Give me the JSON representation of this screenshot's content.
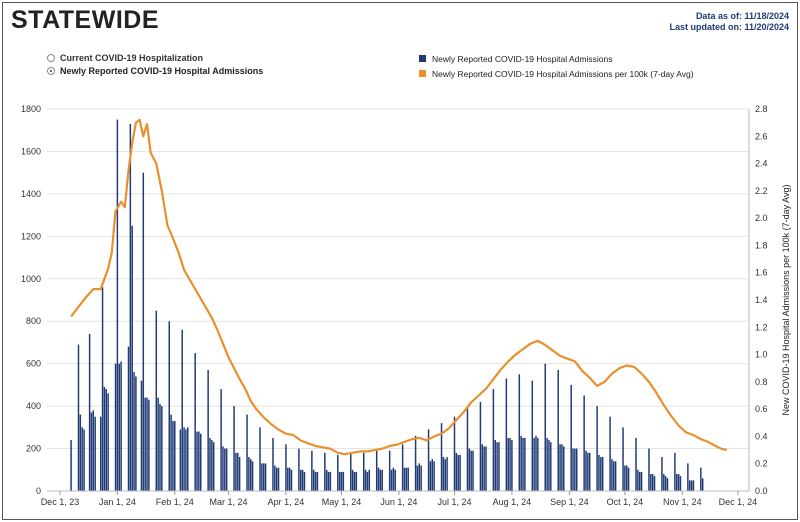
{
  "header": {
    "title": "STATEWIDE",
    "data_as_of": "Data as of: 11/18/2024",
    "last_updated": "Last updated on: 11/20/2024"
  },
  "toggle": {
    "options": [
      {
        "label": "Current COVID-19 Hospitalization",
        "selected": false
      },
      {
        "label": "Newly Reported COVID-19 Hospital Admissions",
        "selected": true
      }
    ]
  },
  "legend": {
    "items": [
      {
        "label": "Newly Reported COVID-19 Hospital Admissions",
        "color": "#1f3a75"
      },
      {
        "label": "Newly Reported COVID-19 Hospital Admissions per 100k (7-day Avg)",
        "color": "#e8902e"
      }
    ]
  },
  "colors": {
    "bar": "#1f3a75",
    "line": "#e8902e",
    "grid": "#e4e4e4"
  },
  "chart_data": {
    "type": "bar",
    "title": "Newly Reported COVID-19 Hospital Admissions",
    "xlabel": "",
    "ylabel": "",
    "y2label": "New COVID-19 Hospital Admissions per 100k (7-day Avg)",
    "ylim": [
      0,
      1800
    ],
    "y2lim": [
      0,
      2.8
    ],
    "yticks": [
      0,
      200,
      400,
      600,
      800,
      1000,
      1200,
      1400,
      1600,
      1800
    ],
    "y2ticks": [
      "0.0",
      "0.2",
      "0.4",
      "0.6",
      "0.8",
      "1.0",
      "1.2",
      "1.4",
      "1.6",
      "1.8",
      "2.0",
      "2.2",
      "2.4",
      "2.6",
      "2.8"
    ],
    "xticks": [
      "Dec 1, 23",
      "Jan 1, 24",
      "Feb 1, 24",
      "Mar 1, 24",
      "Apr 1, 24",
      "May 1, 24",
      "Jun 1, 24",
      "Jul 1, 24",
      "Aug 1, 24",
      "Sep 1, 24",
      "Oct 1, 24",
      "Nov 1, 24",
      "Dec 1, 24"
    ],
    "x_range_days": [
      -7,
      372
    ],
    "series": [
      {
        "name": "Newly Reported COVID-19 Hospital Admissions",
        "axis": "left",
        "kind": "bar",
        "start_day": 6,
        "values": [
          240,
          0,
          0,
          0,
          690,
          360,
          300,
          290,
          0,
          0,
          740,
          370,
          380,
          350,
          0,
          0,
          350,
          960,
          490,
          480,
          460,
          0,
          0,
          0,
          600,
          1750,
          600,
          610,
          0,
          0,
          0,
          680,
          1730,
          1250,
          560,
          540,
          0,
          0,
          520,
          1500,
          440,
          440,
          430,
          0,
          0,
          0,
          850,
          440,
          410,
          400,
          0,
          0,
          0,
          800,
          360,
          330,
          330,
          0,
          0,
          290,
          760,
          300,
          290,
          300,
          0,
          0,
          0,
          650,
          280,
          280,
          270,
          0,
          0,
          0,
          570,
          250,
          240,
          230,
          0,
          0,
          0,
          480,
          210,
          200,
          200,
          0,
          0,
          0,
          400,
          180,
          180,
          160,
          0,
          0,
          0,
          360,
          160,
          150,
          140,
          0,
          0,
          0,
          300,
          130,
          130,
          130,
          0,
          0,
          0,
          250,
          120,
          110,
          110,
          0,
          0,
          0,
          220,
          110,
          110,
          100,
          0,
          0,
          0,
          200,
          100,
          100,
          90,
          0,
          0,
          0,
          190,
          100,
          90,
          90,
          0,
          0,
          0,
          180,
          100,
          90,
          90,
          0,
          0,
          0,
          170,
          90,
          90,
          90,
          0,
          0,
          0,
          180,
          100,
          90,
          90,
          0,
          0,
          0,
          180,
          100,
          90,
          100,
          0,
          0,
          0,
          190,
          110,
          100,
          100,
          0,
          0,
          0,
          190,
          100,
          110,
          100,
          0,
          0,
          0,
          220,
          110,
          110,
          110,
          0,
          0,
          0,
          260,
          120,
          130,
          120,
          0,
          0,
          0,
          290,
          140,
          150,
          140,
          0,
          0,
          0,
          320,
          160,
          150,
          160,
          0,
          0,
          0,
          350,
          180,
          170,
          170,
          0,
          0,
          0,
          390,
          200,
          190,
          190,
          0,
          0,
          0,
          420,
          220,
          210,
          210,
          0,
          0,
          0,
          480,
          240,
          230,
          230,
          0,
          0,
          0,
          530,
          250,
          250,
          240,
          0,
          0,
          0,
          550,
          260,
          250,
          250,
          0,
          0,
          0,
          520,
          250,
          260,
          250,
          0,
          0,
          0,
          600,
          250,
          240,
          230,
          0,
          0,
          0,
          570,
          220,
          220,
          210,
          0,
          0,
          0,
          500,
          200,
          200,
          200,
          0,
          0,
          0,
          450,
          190,
          180,
          180,
          0,
          0,
          0,
          400,
          170,
          160,
          160,
          0,
          0,
          0,
          350,
          150,
          140,
          140,
          0,
          0,
          0,
          300,
          120,
          120,
          110,
          0,
          0,
          0,
          250,
          100,
          90,
          90,
          0,
          0,
          0,
          200,
          80,
          80,
          70,
          0,
          0,
          0,
          160,
          80,
          70,
          60,
          0,
          0,
          0,
          180,
          80,
          80,
          70,
          0,
          0,
          0,
          130,
          50,
          50,
          50,
          0,
          0,
          0,
          110,
          60
        ]
      },
      {
        "name": "Newly Reported COVID-19 Hospital Admissions per 100k (7-day Avg)",
        "axis": "right",
        "kind": "line",
        "days": [
          6,
          10,
          14,
          18,
          22,
          26,
          28,
          30,
          33,
          35,
          37,
          39,
          41,
          43,
          45,
          47,
          49,
          52,
          55,
          58,
          61,
          64,
          67,
          70,
          73,
          76,
          79,
          82,
          85,
          88,
          91,
          94,
          97,
          100,
          103,
          106,
          110,
          114,
          118,
          122,
          126,
          130,
          134,
          138,
          142,
          146,
          150,
          154,
          158,
          162,
          166,
          170,
          174,
          178,
          182,
          186,
          190,
          194,
          198,
          202,
          206,
          210,
          214,
          218,
          222,
          226,
          230,
          234,
          238,
          242,
          246,
          250,
          254,
          258,
          262,
          266,
          270,
          274,
          278,
          282,
          286,
          290,
          294,
          298,
          302,
          306,
          310,
          314,
          318,
          322,
          326,
          330,
          334,
          338,
          342,
          346,
          350,
          354,
          357,
          360
        ],
        "values": [
          1.28,
          1.35,
          1.42,
          1.48,
          1.48,
          1.63,
          1.75,
          2.05,
          2.12,
          2.08,
          2.35,
          2.55,
          2.7,
          2.72,
          2.6,
          2.69,
          2.48,
          2.4,
          2.2,
          1.95,
          1.85,
          1.75,
          1.62,
          1.55,
          1.48,
          1.41,
          1.34,
          1.27,
          1.18,
          1.08,
          0.98,
          0.9,
          0.82,
          0.75,
          0.66,
          0.6,
          0.54,
          0.49,
          0.45,
          0.42,
          0.41,
          0.37,
          0.35,
          0.33,
          0.32,
          0.31,
          0.28,
          0.27,
          0.28,
          0.29,
          0.29,
          0.3,
          0.31,
          0.33,
          0.34,
          0.36,
          0.38,
          0.39,
          0.37,
          0.4,
          0.42,
          0.46,
          0.52,
          0.58,
          0.65,
          0.7,
          0.75,
          0.82,
          0.89,
          0.95,
          1.0,
          1.04,
          1.08,
          1.1,
          1.07,
          1.03,
          0.99,
          0.97,
          0.95,
          0.88,
          0.83,
          0.77,
          0.8,
          0.86,
          0.9,
          0.92,
          0.91,
          0.86,
          0.8,
          0.72,
          0.63,
          0.55,
          0.48,
          0.43,
          0.41,
          0.38,
          0.36,
          0.33,
          0.31,
          0.3
        ]
      }
    ]
  }
}
